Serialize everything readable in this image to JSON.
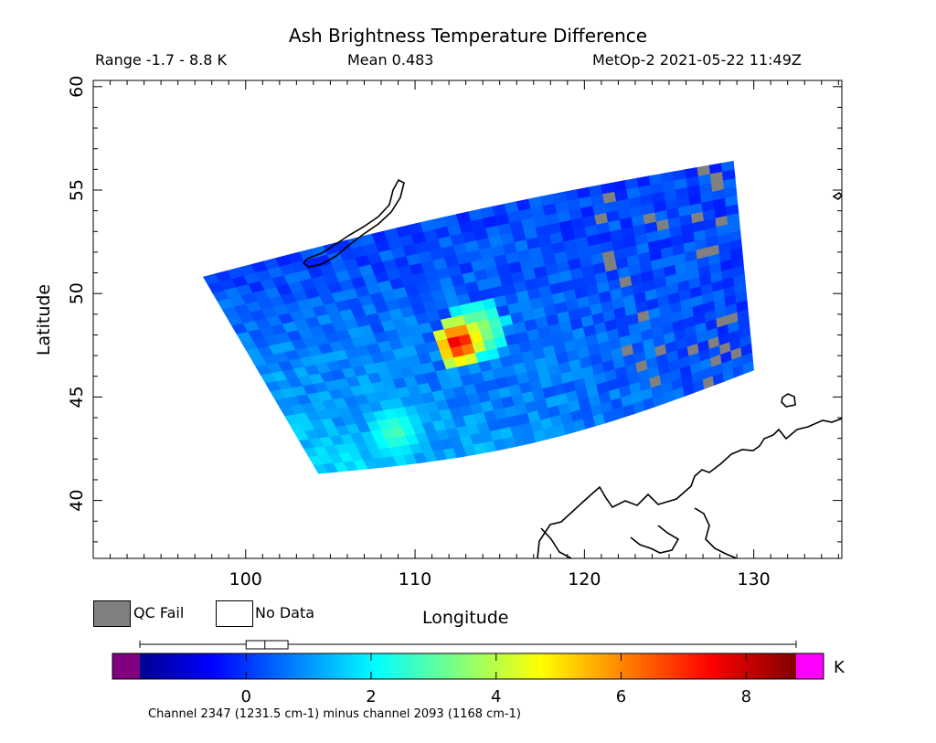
{
  "header": {
    "range": "Range -1.7 - 8.8 K",
    "mean": "Mean 0.483",
    "satellite": "MetOp-2 2021-05-22 11:49Z"
  },
  "legend": {
    "qc_fail": "QC Fail",
    "no_data": "No Data",
    "qc_fail_color": "#808080",
    "no_data_color": "#ffffff"
  },
  "chart_data": {
    "type": "heatmap",
    "title": "Ash Brightness Temperature Difference",
    "xlabel": "Longitude",
    "ylabel": "Latitude",
    "xlim": [
      91,
      135.2
    ],
    "ylim": [
      37.2,
      60.3
    ],
    "xticks": [
      100,
      110,
      120,
      130
    ],
    "yticks": [
      40,
      45,
      50,
      55,
      60
    ],
    "swath_corners": {
      "northwest": [
        97.5,
        50.8
      ],
      "northeast": [
        128.8,
        56.4
      ],
      "southeast": [
        130.0,
        46.3
      ],
      "southwest": [
        104.3,
        41.3
      ]
    },
    "field_background_value": 0.3,
    "features": [
      {
        "name": "ash plume core",
        "center": [
          112.6,
          47.6
        ],
        "max_value": 8.5
      },
      {
        "name": "ash plume edge",
        "center": [
          113.7,
          48.2
        ],
        "max_value": 4.3
      },
      {
        "name": "southwest tail",
        "center": [
          108.8,
          43.3
        ],
        "max_value": 3.2
      }
    ],
    "colorbar": {
      "min": -1.7,
      "max": 8.8,
      "unit": "K",
      "ticks": [
        0,
        2,
        4,
        6,
        8
      ],
      "underflow_color": "#800080",
      "overflow_color": "#ff00ff",
      "boxplot": {
        "whisker_low": -1.7,
        "q1": 0.0,
        "median": 0.3,
        "q3": 0.67,
        "whisker_high": 8.8
      }
    },
    "grid": false,
    "footnote": "Channel 2347 (1231.5 cm-1) minus channel 2093 (1168 cm-1)"
  }
}
